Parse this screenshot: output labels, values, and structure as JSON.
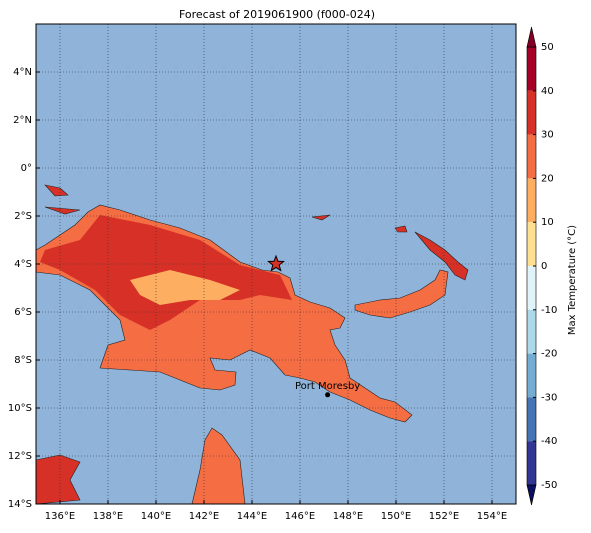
{
  "chart_data": {
    "type": "map",
    "title": "Forecast of 2019061900 (f000-024)",
    "xlim": [
      135,
      155
    ],
    "ylim": [
      -14,
      6
    ],
    "xticks": [
      {
        "value": 136,
        "label": "136°E"
      },
      {
        "value": 138,
        "label": "138°E"
      },
      {
        "value": 140,
        "label": "140°E"
      },
      {
        "value": 142,
        "label": "142°E"
      },
      {
        "value": 144,
        "label": "144°E"
      },
      {
        "value": 146,
        "label": "146°E"
      },
      {
        "value": 148,
        "label": "148°E"
      },
      {
        "value": 150,
        "label": "150°E"
      },
      {
        "value": 152,
        "label": "152°E"
      },
      {
        "value": 154,
        "label": "154°E"
      }
    ],
    "yticks": [
      {
        "value": 4,
        "label": "4°N"
      },
      {
        "value": 2,
        "label": "2°N"
      },
      {
        "value": 0,
        "label": "0°"
      },
      {
        "value": -2,
        "label": "2°S"
      },
      {
        "value": -4,
        "label": "4°S"
      },
      {
        "value": -6,
        "label": "6°S"
      },
      {
        "value": -8,
        "label": "8°S"
      },
      {
        "value": -10,
        "label": "10°S"
      },
      {
        "value": -12,
        "label": "12°S"
      },
      {
        "value": -14,
        "label": "14°S"
      }
    ],
    "grid": true,
    "markers": [
      {
        "lon": 145,
        "lat": -4,
        "symbol": "star"
      }
    ],
    "places": [
      {
        "name": "Port Moresby",
        "lon": 147.15,
        "lat": -9.45
      }
    ],
    "colorbar": {
      "label": "Max Temperature (°C)",
      "ticks": [
        50,
        40,
        30,
        20,
        10,
        0,
        -10,
        -20,
        -30,
        -40,
        -50
      ],
      "colors": [
        "#a50026",
        "#d73027",
        "#f46d43",
        "#fdae61",
        "#fee090",
        "#e0f3f8",
        "#abd9e9",
        "#74add1",
        "#4575b4",
        "#313695"
      ],
      "extend_colors": [
        "#800026",
        "#0b0f60"
      ]
    }
  }
}
